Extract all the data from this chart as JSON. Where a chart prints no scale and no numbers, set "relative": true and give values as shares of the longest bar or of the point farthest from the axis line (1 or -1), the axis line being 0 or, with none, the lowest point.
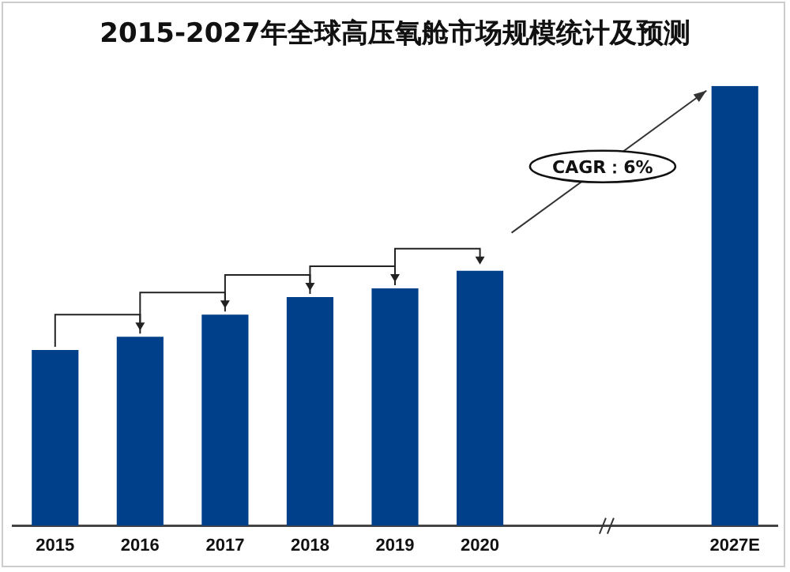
{
  "chart_data": {
    "type": "bar",
    "title": "2015-2027年全球高压氧舱市场规模统计及预测",
    "relative": true,
    "categories": [
      "2015",
      "2016",
      "2017",
      "2018",
      "2019",
      "2020",
      null,
      null,
      "2027E"
    ],
    "values": [
      0.4,
      0.43,
      0.48,
      0.52,
      0.54,
      0.58,
      null,
      null,
      1
    ],
    "color": "#003f8a",
    "annotations": [
      "CAGR：6%"
    ],
    "grid": false,
    "legend": false
  }
}
